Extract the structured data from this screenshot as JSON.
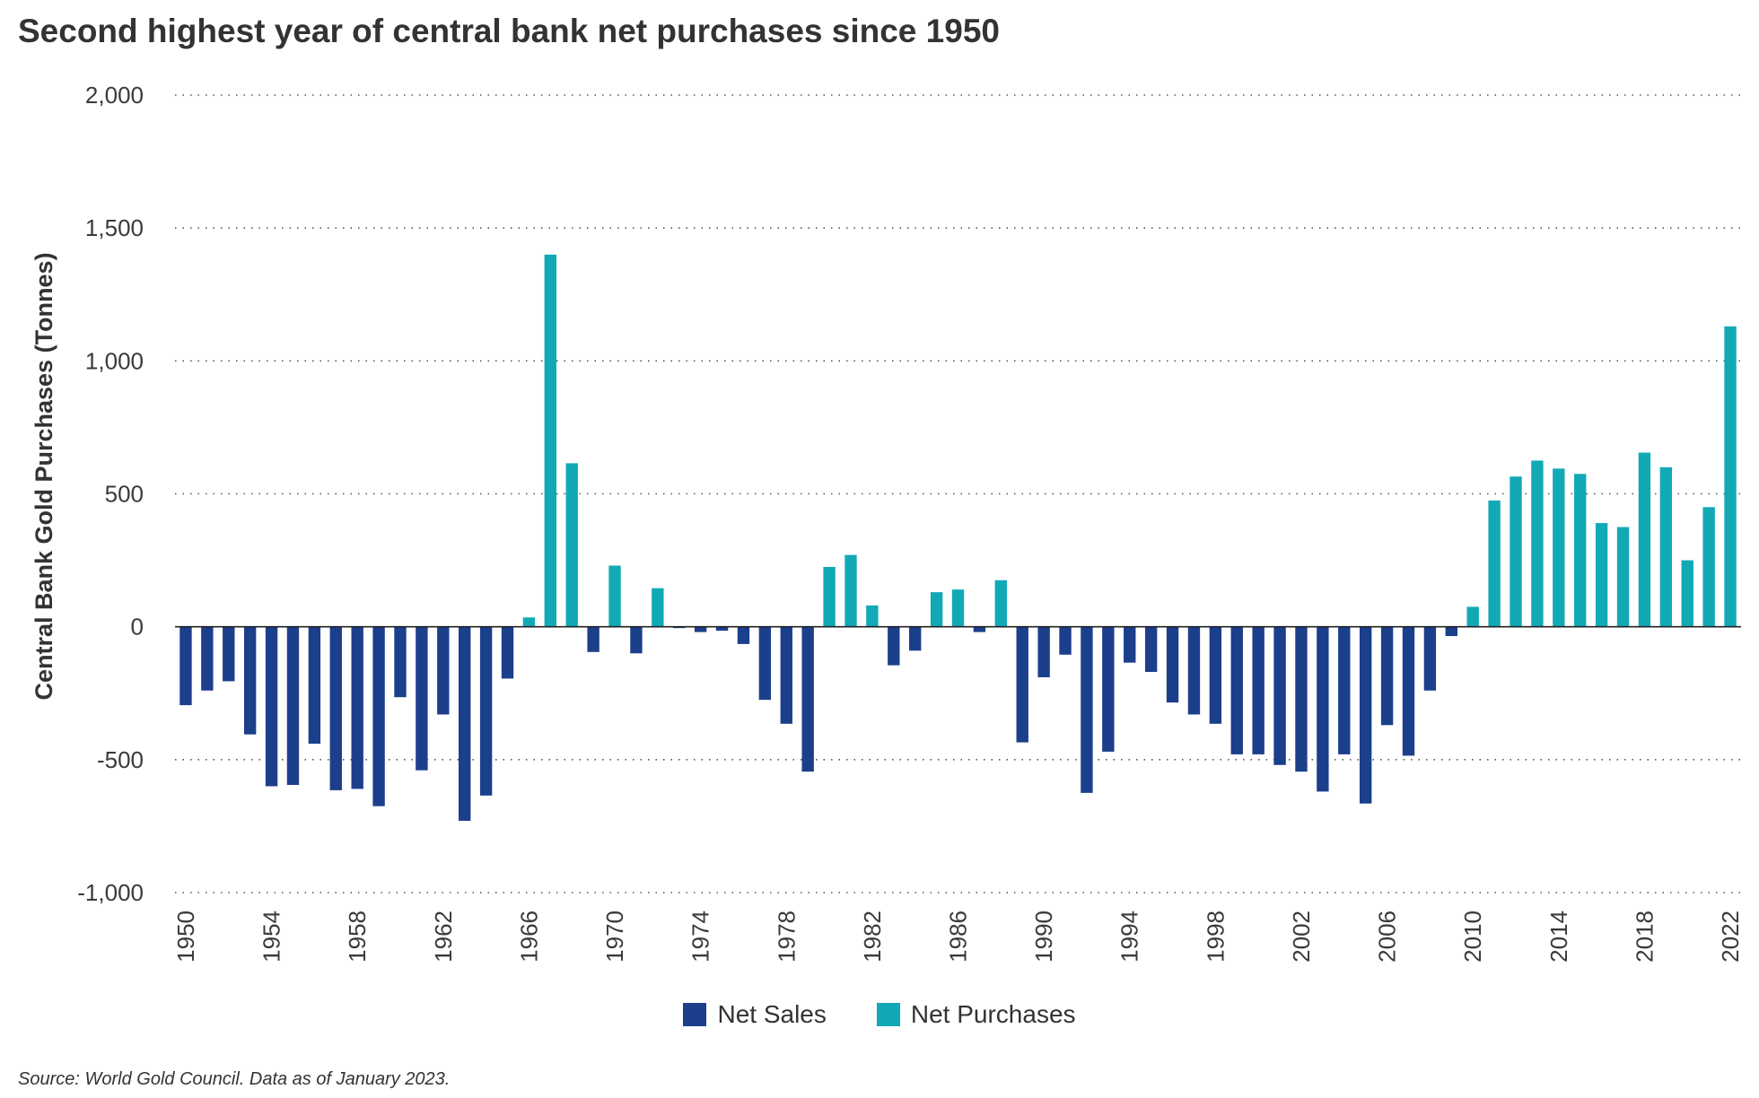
{
  "chart_data": {
    "type": "bar",
    "title": "Second highest year of central bank net purchases since 1950",
    "ylabel": "Central Bank Gold Purchases (Tonnes)",
    "xlabel": "",
    "ylim": [
      -1000,
      2000
    ],
    "yticks": [
      -1000,
      -500,
      0,
      500,
      1000,
      1500,
      2000
    ],
    "ytick_labels": [
      "-1,000",
      "-500",
      "0",
      "500",
      "1,000",
      "1,500",
      "2,000"
    ],
    "xtick_labels": [
      "1950",
      "1954",
      "1958",
      "1962",
      "1966",
      "1970",
      "1974",
      "1978",
      "1982",
      "1986",
      "1990",
      "1994",
      "1998",
      "2002",
      "2006",
      "2010",
      "2014",
      "2018",
      "2022"
    ],
    "years": [
      1950,
      1951,
      1952,
      1953,
      1954,
      1955,
      1956,
      1957,
      1958,
      1959,
      1960,
      1961,
      1962,
      1963,
      1964,
      1965,
      1966,
      1967,
      1968,
      1969,
      1970,
      1971,
      1972,
      1973,
      1974,
      1975,
      1976,
      1977,
      1978,
      1979,
      1980,
      1981,
      1982,
      1983,
      1984,
      1985,
      1986,
      1987,
      1988,
      1989,
      1990,
      1991,
      1992,
      1993,
      1994,
      1995,
      1996,
      1997,
      1998,
      1999,
      2000,
      2001,
      2002,
      2003,
      2004,
      2005,
      2006,
      2007,
      2008,
      2009,
      2010,
      2011,
      2012,
      2013,
      2014,
      2015,
      2016,
      2017,
      2018,
      2019,
      2020,
      2021,
      2022
    ],
    "values": [
      -295,
      -240,
      -205,
      -405,
      -600,
      -595,
      -440,
      -615,
      -610,
      -675,
      -265,
      -540,
      -330,
      -730,
      -635,
      -195,
      35,
      1400,
      615,
      -95,
      230,
      -100,
      145,
      -5,
      -20,
      -15,
      -65,
      -275,
      -365,
      -545,
      225,
      270,
      80,
      -145,
      -90,
      130,
      140,
      -20,
      175,
      -435,
      -190,
      -105,
      -625,
      -470,
      -135,
      -170,
      -285,
      -330,
      -365,
      -480,
      -480,
      -520,
      -545,
      -620,
      -480,
      -665,
      -370,
      -485,
      -240,
      -35,
      75,
      475,
      565,
      625,
      595,
      575,
      390,
      375,
      655,
      600,
      250,
      450,
      1130
    ],
    "series": [
      {
        "name": "Net Sales",
        "color": "#1c3f8c"
      },
      {
        "name": "Net Purchases",
        "color": "#12a9b6"
      }
    ],
    "grid": "horizontal-dotted",
    "legend_position": "bottom-center"
  },
  "source": "Source: World Gold Council. Data as of January 2023."
}
